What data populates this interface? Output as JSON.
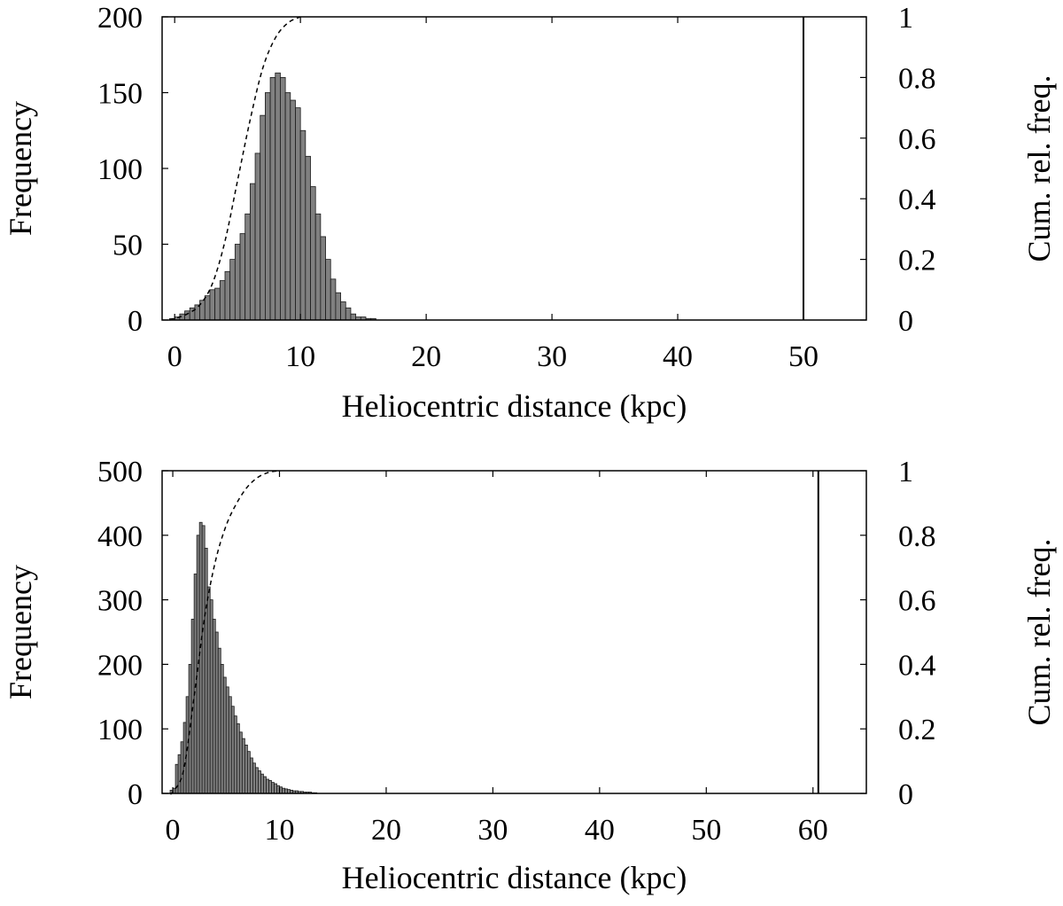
{
  "chart_data": [
    {
      "type": "bar",
      "title": "",
      "xlabel": "Heliocentric distance (kpc)",
      "ylabel": "Frequency",
      "y2label": "Cum. rel. freq.",
      "xlim": [
        -1,
        55
      ],
      "ylim": [
        0,
        200
      ],
      "y2lim": [
        0,
        1
      ],
      "xticks": [
        0,
        10,
        20,
        30,
        40,
        50
      ],
      "yticks": [
        0,
        50,
        100,
        150,
        200
      ],
      "y2ticks": [
        0,
        0.2,
        0.4,
        0.6,
        0.8,
        1
      ],
      "xtick_labels": [
        "0",
        "10",
        "20",
        "30",
        "40",
        "50"
      ],
      "ytick_labels": [
        "0",
        "50",
        "100",
        "150",
        "200"
      ],
      "y2tick_labels": [
        "0",
        "0.2",
        "0.4",
        "0.6",
        "0.8",
        "1"
      ],
      "bin_width": 0.4,
      "bin_start": -0.4,
      "values": [
        1,
        2,
        4,
        6,
        8,
        10,
        13,
        16,
        20,
        21,
        26,
        32,
        40,
        50,
        57,
        70,
        90,
        110,
        135,
        150,
        160,
        163,
        160,
        150,
        145,
        140,
        125,
        108,
        88,
        70,
        55,
        40,
        27,
        18,
        12,
        8,
        4,
        2,
        2,
        1,
        1
      ],
      "cumulative_curve": {
        "style": "dashed",
        "points": [
          [
            -0.4,
            0
          ],
          [
            0,
            0.005
          ],
          [
            1,
            0.02
          ],
          [
            2,
            0.05
          ],
          [
            3,
            0.12
          ],
          [
            4,
            0.26
          ],
          [
            5,
            0.46
          ],
          [
            6,
            0.66
          ],
          [
            7,
            0.83
          ],
          [
            8,
            0.93
          ],
          [
            9,
            0.98
          ],
          [
            10,
            1.0
          ]
        ]
      },
      "vertical_line": 50,
      "grid": false
    },
    {
      "type": "bar",
      "title": "",
      "xlabel": "Heliocentric distance (kpc)",
      "ylabel": "Frequency",
      "y2label": "Cum. rel. freq.",
      "xlim": [
        -1,
        65
      ],
      "ylim": [
        0,
        500
      ],
      "y2lim": [
        0,
        1
      ],
      "xticks": [
        0,
        10,
        20,
        30,
        40,
        50,
        60
      ],
      "yticks": [
        0,
        100,
        200,
        300,
        400,
        500
      ],
      "y2ticks": [
        0,
        0.2,
        0.4,
        0.6,
        0.8,
        1
      ],
      "xtick_labels": [
        "0",
        "10",
        "20",
        "30",
        "40",
        "50",
        "60"
      ],
      "ytick_labels": [
        "0",
        "100",
        "200",
        "300",
        "400",
        "500"
      ],
      "y2tick_labels": [
        "0",
        "0.2",
        "0.4",
        "0.6",
        "0.8",
        "1"
      ],
      "bin_width": 0.25,
      "bin_start": -0.25,
      "values": [
        5,
        8,
        45,
        60,
        80,
        110,
        150,
        200,
        270,
        340,
        400,
        420,
        415,
        380,
        320,
        300,
        270,
        250,
        225,
        200,
        180,
        165,
        150,
        135,
        120,
        108,
        95,
        85,
        75,
        65,
        55,
        47,
        40,
        35,
        30,
        26,
        22,
        20,
        17,
        15,
        12,
        10,
        8,
        7,
        6,
        5,
        4,
        4,
        3,
        3,
        2,
        2,
        2,
        1,
        1
      ],
      "cumulative_curve": {
        "style": "dashed",
        "points": [
          [
            -0.25,
            0
          ],
          [
            0,
            0.005
          ],
          [
            1,
            0.07
          ],
          [
            2,
            0.3
          ],
          [
            3,
            0.55
          ],
          [
            4,
            0.72
          ],
          [
            5,
            0.83
          ],
          [
            6,
            0.9
          ],
          [
            7,
            0.95
          ],
          [
            8,
            0.98
          ],
          [
            9,
            0.995
          ],
          [
            10,
            1.0
          ]
        ]
      },
      "vertical_line": 60.5,
      "grid": false
    }
  ]
}
